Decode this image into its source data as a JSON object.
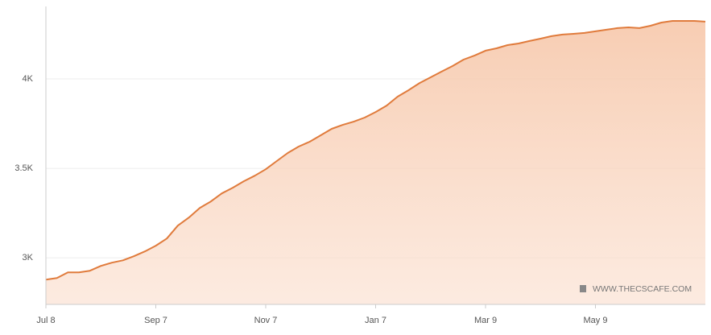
{
  "chart_data": {
    "type": "area",
    "watermark": "WWW.THECSCAFE.COM",
    "color": "#e07b3c",
    "categories": [
      "Jul 8",
      null,
      null,
      null,
      null,
      null,
      null,
      null,
      null,
      null,
      "Sep 7",
      null,
      null,
      null,
      null,
      null,
      null,
      null,
      null,
      null,
      "Nov 7",
      null,
      null,
      null,
      null,
      null,
      null,
      null,
      null,
      null,
      "Jan 7",
      null,
      null,
      null,
      null,
      null,
      null,
      null,
      null,
      null,
      "Mar 9",
      null,
      null,
      null,
      null,
      null,
      null,
      null,
      null,
      null,
      "May 9",
      null,
      null,
      null,
      null,
      null,
      null,
      null,
      null,
      null,
      null
    ],
    "values": [
      2878,
      2887,
      2919,
      2919,
      2928,
      2955,
      2973,
      2986,
      3009,
      3036,
      3068,
      3108,
      3180,
      3225,
      3279,
      3315,
      3360,
      3392,
      3428,
      3459,
      3495,
      3541,
      3586,
      3622,
      3649,
      3685,
      3721,
      3743,
      3761,
      3784,
      3815,
      3851,
      3901,
      3937,
      3977,
      4009,
      4041,
      4072,
      4108,
      4131,
      4158,
      4171,
      4189,
      4198,
      4212,
      4225,
      4239,
      4248,
      4252,
      4257,
      4266,
      4275,
      4284,
      4288,
      4284,
      4297,
      4315,
      4324,
      4324,
      4324,
      4320
    ],
    "ylim": [
      2740,
      4405
    ],
    "yticks": [
      {
        "value": 3000,
        "label": "3K"
      },
      {
        "value": 3500,
        "label": "3.5K"
      },
      {
        "value": 4000,
        "label": "4K"
      }
    ],
    "grid": true
  }
}
